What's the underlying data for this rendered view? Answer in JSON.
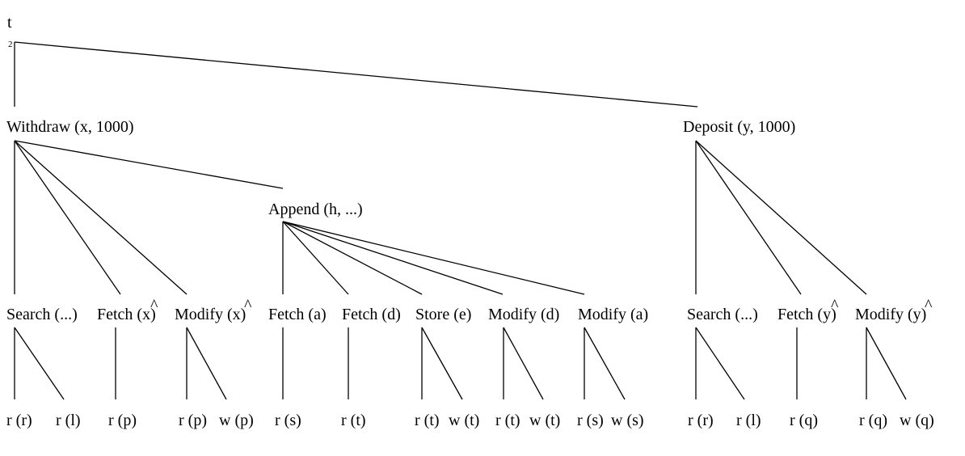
{
  "root": {
    "label": "t",
    "subscript": "2"
  },
  "level1": {
    "withdraw": "Withdraw (x, 1000)",
    "deposit": "Deposit (y, 1000)"
  },
  "level2": {
    "append": "Append (h, ...)"
  },
  "level3": {
    "search_w": "Search (...)",
    "fetch_x": "Fetch (x)",
    "modify_x": "Modify (x)",
    "fetch_a": "Fetch (a)",
    "fetch_d": "Fetch (d)",
    "store_e": "Store (e)",
    "modify_d": "Modify (d)",
    "modify_a": "Modify (a)",
    "search_d": "Search (...)",
    "fetch_y": "Fetch (y)",
    "modify_y": "Modify (y)",
    "hat": "^"
  },
  "leaves": [
    "r (r)",
    "r (l)",
    "r (p)",
    "r (p)",
    "w (p)",
    "r (s)",
    "r (t)",
    "r (t)",
    "w (t)",
    "r (t)",
    "w (t)",
    "r (s)",
    "w (s)",
    "r (r)",
    "r (l)",
    "r (q)",
    "r (q)",
    "w (q)"
  ]
}
